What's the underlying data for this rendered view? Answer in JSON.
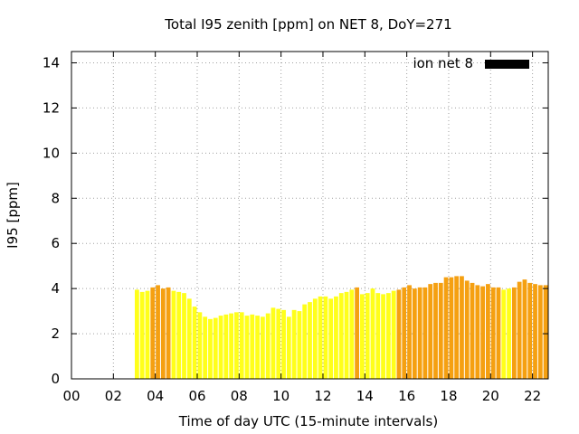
{
  "chart_data": {
    "type": "bar",
    "title": "Total I95 zenith [ppm] on NET 8, DoY=271",
    "xlabel": "Time of day UTC (15-minute intervals)",
    "ylabel": "I95 [ppm]",
    "xlim": [
      0,
      22.75
    ],
    "ylim": [
      0,
      14.5
    ],
    "xticks": [
      0,
      2,
      4,
      6,
      8,
      10,
      12,
      14,
      16,
      18,
      20,
      22
    ],
    "xtick_labels": [
      "00",
      "02",
      "04",
      "06",
      "08",
      "10",
      "12",
      "14",
      "16",
      "18",
      "20",
      "22"
    ],
    "yticks": [
      0,
      2,
      4,
      6,
      8,
      10,
      12,
      14
    ],
    "ytick_labels": [
      "0",
      "2",
      "4",
      "6",
      "8",
      "10",
      "12",
      "14"
    ],
    "grid": true,
    "legend": {
      "label": "ion net 8",
      "placement": "top-right",
      "color": "#000000"
    },
    "colors": {
      "yellow": "#ffff1a",
      "orange": "#f5a011",
      "bar_edge": "#e8e020"
    },
    "bar_interval_hours": 0.25,
    "series": [
      {
        "name": "ion net 8",
        "bars": [
          {
            "t": 3.0,
            "v": 3.95,
            "c": "yellow"
          },
          {
            "t": 3.25,
            "v": 3.85,
            "c": "yellow"
          },
          {
            "t": 3.5,
            "v": 3.9,
            "c": "yellow"
          },
          {
            "t": 3.75,
            "v": 4.05,
            "c": "orange"
          },
          {
            "t": 4.0,
            "v": 4.15,
            "c": "orange"
          },
          {
            "t": 4.25,
            "v": 4.0,
            "c": "orange"
          },
          {
            "t": 4.5,
            "v": 4.05,
            "c": "orange"
          },
          {
            "t": 4.75,
            "v": 3.9,
            "c": "yellow"
          },
          {
            "t": 5.0,
            "v": 3.85,
            "c": "yellow"
          },
          {
            "t": 5.25,
            "v": 3.8,
            "c": "yellow"
          },
          {
            "t": 5.5,
            "v": 3.55,
            "c": "yellow"
          },
          {
            "t": 5.75,
            "v": 3.2,
            "c": "yellow"
          },
          {
            "t": 6.0,
            "v": 2.95,
            "c": "yellow"
          },
          {
            "t": 6.25,
            "v": 2.75,
            "c": "yellow"
          },
          {
            "t": 6.5,
            "v": 2.65,
            "c": "yellow"
          },
          {
            "t": 6.75,
            "v": 2.7,
            "c": "yellow"
          },
          {
            "t": 7.0,
            "v": 2.8,
            "c": "yellow"
          },
          {
            "t": 7.25,
            "v": 2.85,
            "c": "yellow"
          },
          {
            "t": 7.5,
            "v": 2.9,
            "c": "yellow"
          },
          {
            "t": 7.75,
            "v": 2.95,
            "c": "yellow"
          },
          {
            "t": 8.0,
            "v": 2.95,
            "c": "yellow"
          },
          {
            "t": 8.25,
            "v": 2.8,
            "c": "yellow"
          },
          {
            "t": 8.5,
            "v": 2.85,
            "c": "yellow"
          },
          {
            "t": 8.75,
            "v": 2.8,
            "c": "yellow"
          },
          {
            "t": 9.0,
            "v": 2.75,
            "c": "yellow"
          },
          {
            "t": 9.25,
            "v": 2.9,
            "c": "yellow"
          },
          {
            "t": 9.5,
            "v": 3.15,
            "c": "yellow"
          },
          {
            "t": 9.75,
            "v": 3.1,
            "c": "yellow"
          },
          {
            "t": 10.0,
            "v": 3.05,
            "c": "yellow"
          },
          {
            "t": 10.25,
            "v": 2.75,
            "c": "yellow"
          },
          {
            "t": 10.5,
            "v": 3.05,
            "c": "yellow"
          },
          {
            "t": 10.75,
            "v": 3.0,
            "c": "yellow"
          },
          {
            "t": 11.0,
            "v": 3.3,
            "c": "yellow"
          },
          {
            "t": 11.25,
            "v": 3.4,
            "c": "yellow"
          },
          {
            "t": 11.5,
            "v": 3.55,
            "c": "yellow"
          },
          {
            "t": 11.75,
            "v": 3.65,
            "c": "yellow"
          },
          {
            "t": 12.0,
            "v": 3.65,
            "c": "yellow"
          },
          {
            "t": 12.25,
            "v": 3.55,
            "c": "yellow"
          },
          {
            "t": 12.5,
            "v": 3.65,
            "c": "yellow"
          },
          {
            "t": 12.75,
            "v": 3.8,
            "c": "yellow"
          },
          {
            "t": 13.0,
            "v": 3.85,
            "c": "yellow"
          },
          {
            "t": 13.25,
            "v": 3.95,
            "c": "yellow"
          },
          {
            "t": 13.5,
            "v": 4.05,
            "c": "orange"
          },
          {
            "t": 13.75,
            "v": 3.75,
            "c": "yellow"
          },
          {
            "t": 14.0,
            "v": 3.8,
            "c": "yellow"
          },
          {
            "t": 14.25,
            "v": 4.0,
            "c": "yellow"
          },
          {
            "t": 14.5,
            "v": 3.8,
            "c": "yellow"
          },
          {
            "t": 14.75,
            "v": 3.75,
            "c": "yellow"
          },
          {
            "t": 15.0,
            "v": 3.8,
            "c": "yellow"
          },
          {
            "t": 15.25,
            "v": 3.9,
            "c": "yellow"
          },
          {
            "t": 15.5,
            "v": 3.95,
            "c": "orange"
          },
          {
            "t": 15.75,
            "v": 4.05,
            "c": "orange"
          },
          {
            "t": 16.0,
            "v": 4.15,
            "c": "orange"
          },
          {
            "t": 16.25,
            "v": 4.0,
            "c": "orange"
          },
          {
            "t": 16.5,
            "v": 4.05,
            "c": "orange"
          },
          {
            "t": 16.75,
            "v": 4.05,
            "c": "orange"
          },
          {
            "t": 17.0,
            "v": 4.2,
            "c": "orange"
          },
          {
            "t": 17.25,
            "v": 4.25,
            "c": "orange"
          },
          {
            "t": 17.5,
            "v": 4.25,
            "c": "orange"
          },
          {
            "t": 17.75,
            "v": 4.5,
            "c": "orange"
          },
          {
            "t": 18.0,
            "v": 4.5,
            "c": "orange"
          },
          {
            "t": 18.25,
            "v": 4.55,
            "c": "orange"
          },
          {
            "t": 18.5,
            "v": 4.55,
            "c": "orange"
          },
          {
            "t": 18.75,
            "v": 4.35,
            "c": "orange"
          },
          {
            "t": 19.0,
            "v": 4.25,
            "c": "orange"
          },
          {
            "t": 19.25,
            "v": 4.15,
            "c": "orange"
          },
          {
            "t": 19.5,
            "v": 4.1,
            "c": "orange"
          },
          {
            "t": 19.75,
            "v": 4.2,
            "c": "orange"
          },
          {
            "t": 20.0,
            "v": 4.05,
            "c": "orange"
          },
          {
            "t": 20.25,
            "v": 4.05,
            "c": "orange"
          },
          {
            "t": 20.5,
            "v": 3.95,
            "c": "yellow"
          },
          {
            "t": 20.75,
            "v": 4.0,
            "c": "yellow"
          },
          {
            "t": 21.0,
            "v": 4.05,
            "c": "orange"
          },
          {
            "t": 21.25,
            "v": 4.3,
            "c": "orange"
          },
          {
            "t": 21.5,
            "v": 4.4,
            "c": "orange"
          },
          {
            "t": 21.75,
            "v": 4.25,
            "c": "orange"
          },
          {
            "t": 22.0,
            "v": 4.2,
            "c": "orange"
          },
          {
            "t": 22.25,
            "v": 4.15,
            "c": "orange"
          },
          {
            "t": 22.5,
            "v": 4.15,
            "c": "orange"
          }
        ]
      }
    ]
  }
}
